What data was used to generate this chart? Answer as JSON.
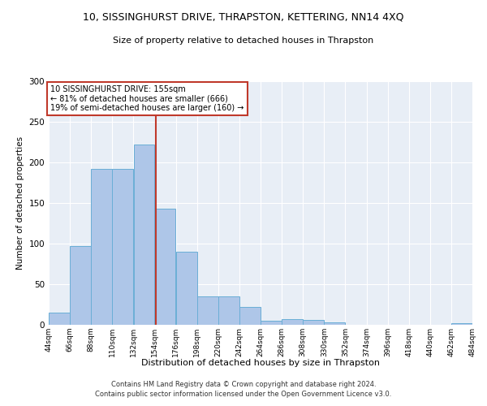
{
  "title_line1": "10, SISSINGHURST DRIVE, THRAPSTON, KETTERING, NN14 4XQ",
  "title_line2": "Size of property relative to detached houses in Thrapston",
  "xlabel": "Distribution of detached houses by size in Thrapston",
  "ylabel": "Number of detached properties",
  "bar_color": "#aec6e8",
  "bar_edge_color": "#6aaed6",
  "background_color": "#e8eef6",
  "vline_color": "#c0392b",
  "vline_x": 155,
  "annotation_line1": "10 SISSINGHURST DRIVE: 155sqm",
  "annotation_line2": "← 81% of detached houses are smaller (666)",
  "annotation_line3": "19% of semi-detached houses are larger (160) →",
  "bin_edges": [
    44,
    66,
    88,
    110,
    132,
    154,
    176,
    198,
    220,
    242,
    264,
    286,
    308,
    330,
    352,
    374,
    396,
    418,
    440,
    462,
    484
  ],
  "bar_heights": [
    15,
    97,
    192,
    192,
    222,
    143,
    90,
    35,
    35,
    22,
    5,
    7,
    6,
    3,
    0,
    0,
    0,
    0,
    0,
    2
  ],
  "ylim": [
    0,
    300
  ],
  "yticks": [
    0,
    50,
    100,
    150,
    200,
    250,
    300
  ],
  "footer_line1": "Contains HM Land Registry data © Crown copyright and database right 2024.",
  "footer_line2": "Contains public sector information licensed under the Open Government Licence v3.0."
}
